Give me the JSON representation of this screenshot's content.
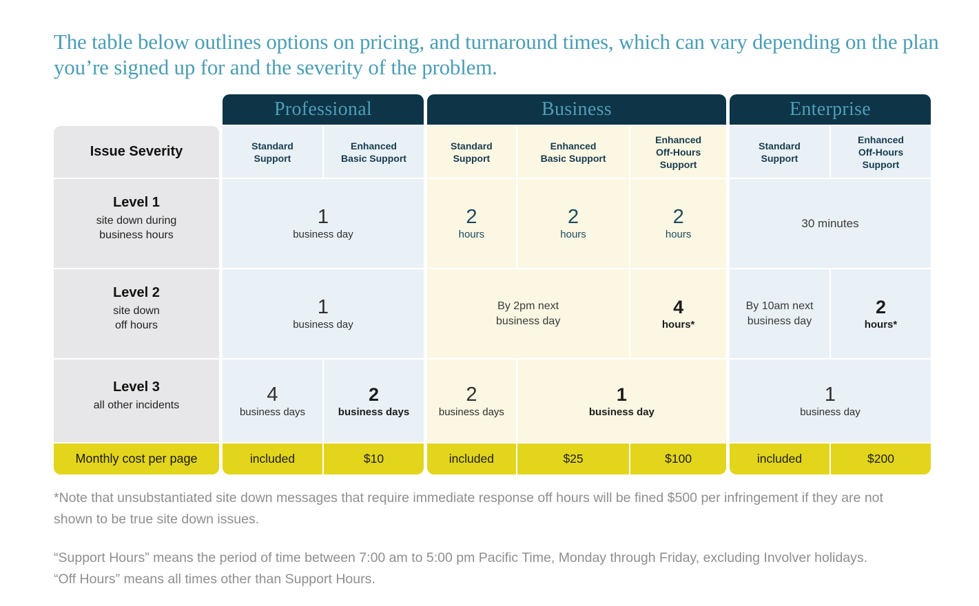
{
  "title": "The table below outlines options on pricing, and turnaround times, which can vary depending on the plan you’re signed up for and the severity of the problem.",
  "colors": {
    "accent_teal": "#4a9db5",
    "plan_header_bg": "#0d3447",
    "plan_header_text": "#4f9fb8",
    "blue_cell": "#e9f1f6",
    "cream_cell": "#fbf7e3",
    "gray_cell": "#e7e7e9",
    "yellow_row": "#e3d51c",
    "teal_value_text": "#1d4a5e",
    "note_text": "#8e8e8e"
  },
  "severity": {
    "header": "Issue Severity",
    "levels": [
      {
        "name": "Level 1",
        "desc": "site down during\nbusiness hours"
      },
      {
        "name": "Level 2",
        "desc": "site down\noff hours"
      },
      {
        "name": "Level 3",
        "desc": "all other incidents"
      }
    ],
    "cost_label": "Monthly cost per page"
  },
  "plans": [
    {
      "name": "Professional",
      "columns": [
        "Standard\nSupport",
        "Enhanced\nBasic Support"
      ],
      "cells": {
        "l1": {
          "num": "1",
          "unit": "business day"
        },
        "l2": {
          "num": "1",
          "unit": "business day"
        },
        "l3a": {
          "num": "4",
          "unit": "business days"
        },
        "l3b": {
          "num": "2",
          "unit": "business days"
        },
        "costs": [
          "included",
          "$10"
        ]
      }
    },
    {
      "name": "Business",
      "columns": [
        "Standard\nSupport",
        "Enhanced\nBasic Support",
        "Enhanced\nOff-Hours\nSupport"
      ],
      "cells": {
        "l1a": {
          "num": "2",
          "unit": "hours"
        },
        "l1b": {
          "num": "2",
          "unit": "hours"
        },
        "l1c": {
          "num": "2",
          "unit": "hours"
        },
        "l2a": {
          "text": "By 2pm next\nbusiness day"
        },
        "l2b": {
          "num": "4",
          "unit": "hours*"
        },
        "l3a": {
          "num": "2",
          "unit": "business days"
        },
        "l3b": {
          "num": "1",
          "unit": "business day"
        },
        "costs": [
          "included",
          "$25",
          "$100"
        ]
      }
    },
    {
      "name": "Enterprise",
      "columns": [
        "Standard\nSupport",
        "Enhanced\nOff-Hours\nSupport"
      ],
      "cells": {
        "l1": {
          "text": "30 minutes"
        },
        "l2a": {
          "text": "By 10am next\nbusiness day"
        },
        "l2b": {
          "num": "2",
          "unit": "hours*"
        },
        "l3": {
          "num": "1",
          "unit": "business day"
        },
        "costs": [
          "included",
          "$200"
        ]
      }
    }
  ],
  "notes": [
    "*Note that unsubstantiated site down messages that require immediate response off hours will be fined $500 per infringement if they are not shown to be true site down issues.",
    "“Support Hours” means the period of time between 7:00 am to 5:00 pm Pacific Time, Monday through Friday, excluding Involver holidays.\n“Off Hours” means all times other than Support Hours."
  ]
}
